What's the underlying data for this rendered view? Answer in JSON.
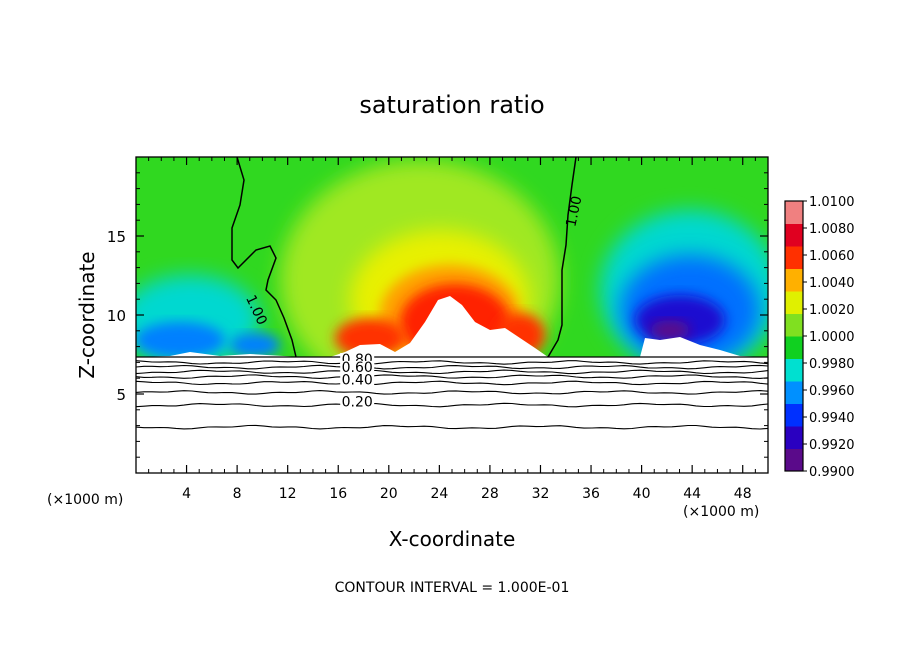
{
  "chart_data": {
    "type": "heatmap",
    "title": "saturation ratio",
    "xlabel": "X-coordinate",
    "ylabel": "Z-coordinate",
    "x_unit_left": "(×1000 m)",
    "x_unit_right": "(×1000 m)",
    "footer": "CONTOUR INTERVAL = 1.000E-01",
    "xlim": [
      0,
      50
    ],
    "ylim": [
      0,
      20
    ],
    "x_ticks": [
      "4",
      "8",
      "12",
      "16",
      "20",
      "24",
      "28",
      "32",
      "36",
      "40",
      "44",
      "48"
    ],
    "y_ticks": [
      "5",
      "10",
      "15"
    ],
    "colorbar": {
      "min": 0.99,
      "max": 1.01,
      "labels": [
        "1.0100",
        "1.0080",
        "1.0060",
        "1.0040",
        "1.0020",
        "1.0000",
        "0.9980",
        "0.9960",
        "0.9940",
        "0.9920",
        "0.9900"
      ],
      "colors": [
        "#5a0a8a",
        "#2a00c0",
        "#0030ff",
        "#0090ff",
        "#00e0d0",
        "#10d020",
        "#80e020",
        "#e0f000",
        "#ffb000",
        "#ff3000",
        "#e00020",
        "#f08080"
      ]
    },
    "contour_labels": [
      {
        "text": "1.00",
        "x": 9.2,
        "y": 10.2
      },
      {
        "text": "1.00",
        "x": 35.0,
        "y": 16.5
      },
      {
        "text": "0.80",
        "x": 17.5,
        "y": 6.9
      },
      {
        "text": "0.60",
        "x": 17.5,
        "y": 6.4
      },
      {
        "text": "0.40",
        "x": 17.5,
        "y": 5.6
      },
      {
        "text": "0.20",
        "x": 17.5,
        "y": 4.2
      }
    ],
    "lower_contours": [
      {
        "value": 0.2,
        "z": 2.9
      },
      {
        "value": 0.2,
        "z": 4.3
      },
      {
        "value": 0.4,
        "z": 5.1
      },
      {
        "value": 0.4,
        "z": 5.7
      },
      {
        "value": 0.6,
        "z": 6.1
      },
      {
        "value": 0.6,
        "z": 6.4
      },
      {
        "value": 0.8,
        "z": 6.7
      },
      {
        "value": 0.9,
        "z": 7.0
      }
    ],
    "cloud_base_z": 7.3,
    "ridge_peaks": [
      {
        "x": 20,
        "z": 9.5
      },
      {
        "x": 25,
        "z": 12
      },
      {
        "x": 44,
        "z": 15
      }
    ]
  }
}
